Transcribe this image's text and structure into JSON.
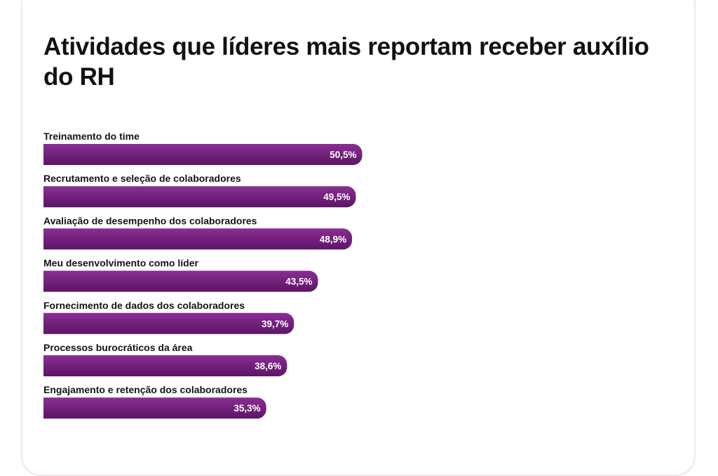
{
  "chart_data": {
    "type": "bar",
    "orientation": "horizontal",
    "title": "Atividades que líderes mais reportam receber auxílio do RH",
    "categories": [
      "Treinamento do time",
      "Recrutamento e seleção de colaboradores",
      "Avaliação de desempenho dos colaboradores",
      "Meu desenvolvimento como líder",
      "Fornecimento de dados dos colaboradores",
      "Processos burocráticos da área",
      "Engajamento e retenção dos colaboradores"
    ],
    "values": [
      50.5,
      49.5,
      48.9,
      43.5,
      39.7,
      38.6,
      35.3
    ],
    "value_labels": [
      "50,5%",
      "49,5%",
      "48,9%",
      "43,5%",
      "39,7%",
      "38,6%",
      "35,3%"
    ],
    "unit": "%",
    "xlim": [
      0,
      100
    ],
    "grid": false,
    "legend": "none",
    "bar_color_top": "#8a2e95",
    "bar_color_bottom": "#5c1565"
  }
}
